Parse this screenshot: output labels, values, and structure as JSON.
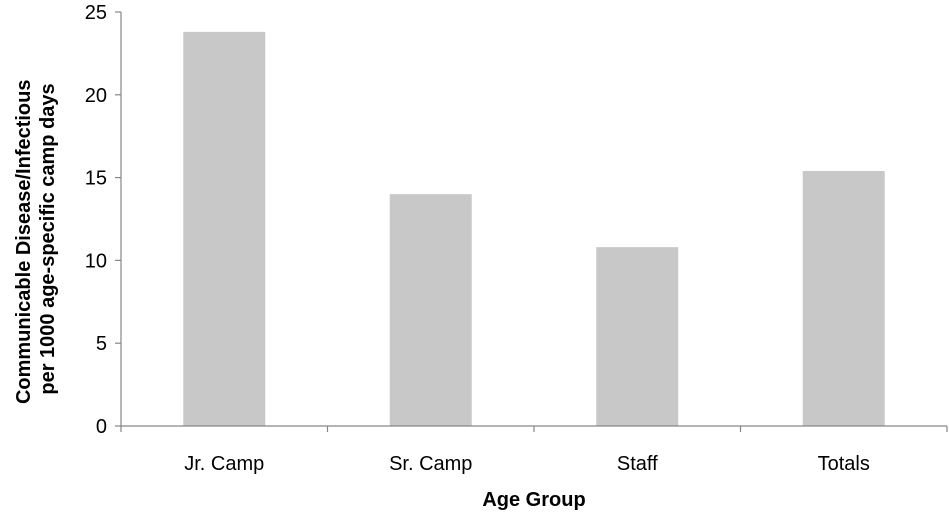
{
  "chart_data": {
    "type": "bar",
    "title": "",
    "categories": [
      "Jr. Camp",
      "Sr. Camp",
      "Staff",
      "Totals"
    ],
    "values": [
      23.8,
      14.0,
      10.8,
      15.4
    ],
    "xlabel": "Age Group",
    "ylabel_lines": [
      "Communicable Disease/Infectious",
      "per 1000 age-specific camp days"
    ],
    "ylim": [
      0,
      25
    ],
    "yticks": [
      "0",
      "5",
      "10",
      "15",
      "20",
      "25"
    ],
    "grid": false,
    "legend": "none",
    "bar_color": "#c8c8c8",
    "axis_color": "#868686"
  }
}
